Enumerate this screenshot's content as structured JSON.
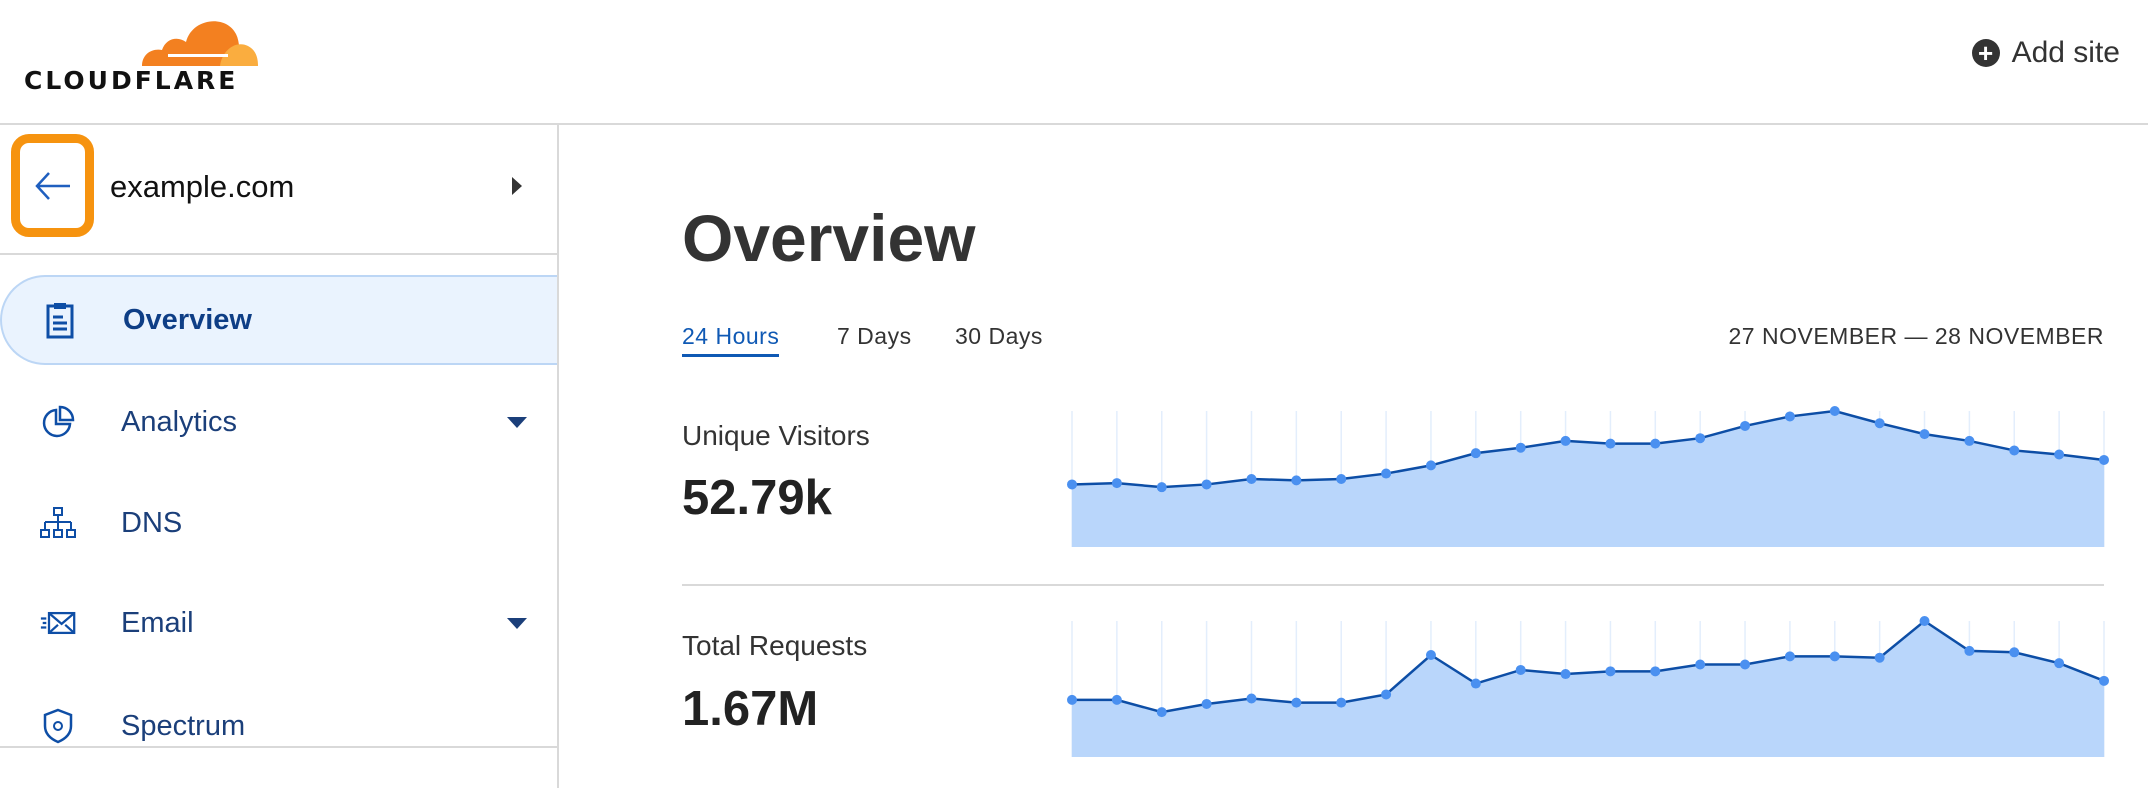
{
  "header": {
    "logo_text": "CLOUDFLARE",
    "add_site_label": "Add site",
    "add_icon": "plus-circle-icon"
  },
  "sidebar": {
    "domain": "example.com",
    "back_icon": "arrow-left-icon",
    "highlight_color": "#f6930f",
    "items": [
      {
        "label": "Overview",
        "icon": "clipboard-icon",
        "active": true
      },
      {
        "label": "Analytics",
        "icon": "pie-chart-icon",
        "dropdown": true
      },
      {
        "label": "DNS",
        "icon": "network-icon"
      },
      {
        "label": "Email",
        "icon": "envelope-icon",
        "dropdown": true
      },
      {
        "label": "Spectrum",
        "icon": "shield-icon"
      }
    ]
  },
  "main": {
    "title": "Overview",
    "tabs": [
      {
        "label": "24 Hours",
        "active": true
      },
      {
        "label": "7 Days"
      },
      {
        "label": "30 Days"
      }
    ],
    "date_range": "27 NOVEMBER — 28 NOVEMBER",
    "metrics": [
      {
        "label": "Unique Visitors",
        "value": "52.79k"
      },
      {
        "label": "Total Requests",
        "value": "1.67M"
      }
    ]
  },
  "chart_data": [
    {
      "type": "area",
      "grid": true,
      "fill_color": "#b9d6fb",
      "line_color": "#0d4ea6",
      "point_color": "#4a90f0",
      "x": [
        1,
        2,
        3,
        4,
        5,
        6,
        7,
        8,
        9,
        10,
        11,
        12,
        13,
        14,
        15,
        16,
        17,
        18,
        19,
        20,
        21,
        22,
        23,
        24
      ],
      "values": [
        46,
        47,
        44,
        46,
        50,
        49,
        50,
        54,
        60,
        69,
        73,
        78,
        76,
        76,
        80,
        89,
        96,
        100,
        91,
        83,
        78,
        71,
        68,
        64
      ]
    },
    {
      "type": "area",
      "grid": true,
      "fill_color": "#b9d6fb",
      "line_color": "#0d4ea6",
      "point_color": "#4a90f0",
      "x": [
        1,
        2,
        3,
        4,
        5,
        6,
        7,
        8,
        9,
        10,
        11,
        12,
        13,
        14,
        15,
        16,
        17,
        18,
        19,
        20,
        21,
        22,
        23,
        24
      ],
      "values": [
        42,
        42,
        33,
        39,
        43,
        40,
        40,
        46,
        75,
        54,
        64,
        61,
        63,
        63,
        68,
        68,
        74,
        74,
        73,
        100,
        78,
        77,
        69,
        56
      ]
    }
  ]
}
